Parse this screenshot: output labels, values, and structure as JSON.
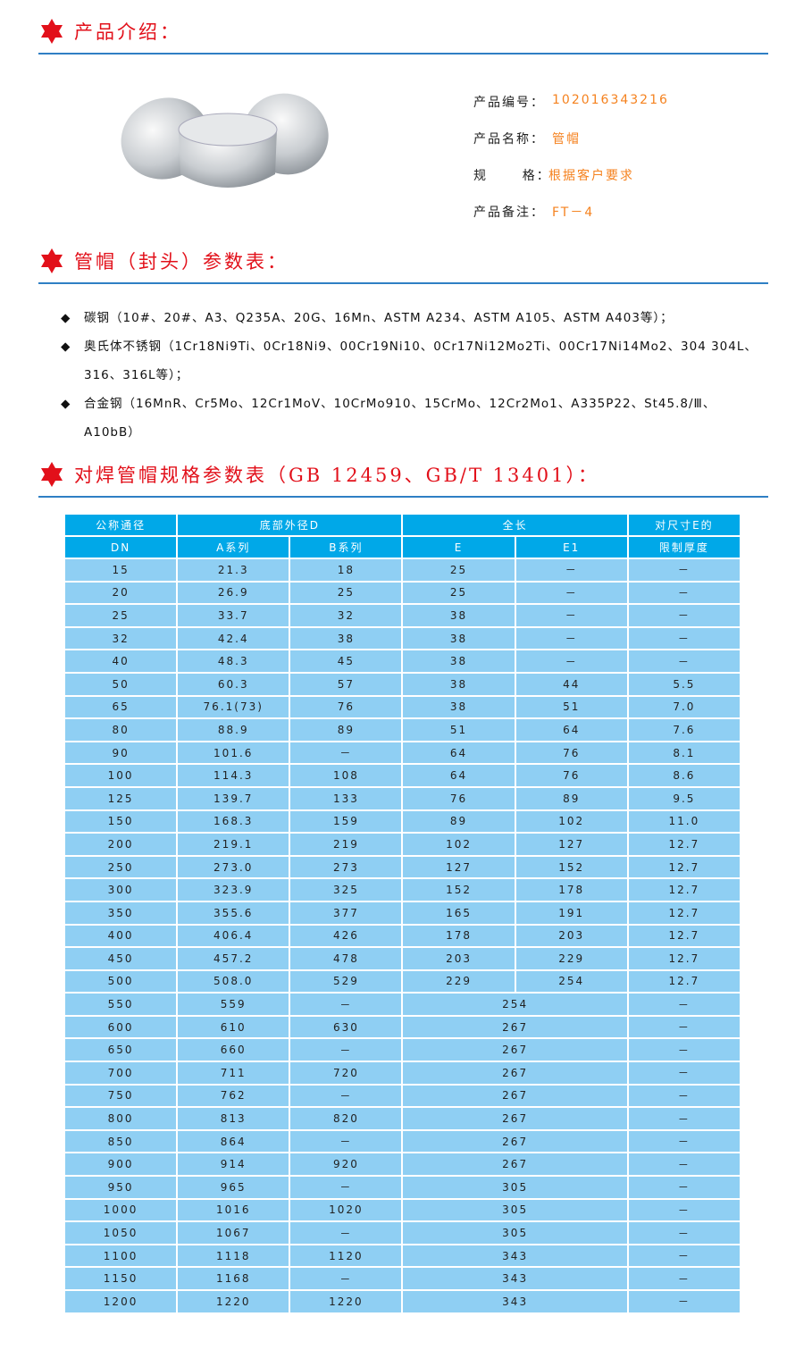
{
  "sections": {
    "intro": "产品介绍：",
    "params": "管帽（封头）参数表：",
    "spec": "对焊管帽规格参数表（GB 12459、GB/T 13401）："
  },
  "product": {
    "rows": [
      {
        "label": "产品编号：",
        "value": "102016343216"
      },
      {
        "label": "产品名称：",
        "value": "管帽"
      },
      {
        "label": "规      格：",
        "value": "根据客户要求"
      },
      {
        "label": "产品备注：",
        "value": "FT－4"
      }
    ],
    "image": "pipe-cap-photo"
  },
  "materials": [
    "碳钢（10#、20#、A3、Q235A、20G、16Mn、ASTM A234、ASTM A105、ASTM A403等）；",
    "奥氏体不锈钢（1Cr18Ni9Ti、0Cr18Ni9、00Cr19Ni10、0Cr17Ni12Mo2Ti、00Cr17Ni14Mo2、304 304L、316、316L等）；",
    "合金钢（16MnR、Cr5Mo、12Cr1MoV、10CrMo910、15CrMo、12Cr2Mo1、A335P22、St45.8/Ⅲ、A10bB）"
  ],
  "table": {
    "header1": [
      "公称通径",
      "底部外径D",
      "全长",
      "对尺寸E的"
    ],
    "header2": [
      "DN",
      "A系列",
      "B系列",
      "E",
      "E1",
      "限制厚度"
    ],
    "rows": [
      [
        "15",
        "21.3",
        "18",
        "25",
        "－",
        "－"
      ],
      [
        "20",
        "26.9",
        "25",
        "25",
        "－",
        "－"
      ],
      [
        "25",
        "33.7",
        "32",
        "38",
        "－",
        "－"
      ],
      [
        "32",
        "42.4",
        "38",
        "38",
        "－",
        "－"
      ],
      [
        "40",
        "48.3",
        "45",
        "38",
        "－",
        "－"
      ],
      [
        "50",
        "60.3",
        "57",
        "38",
        "44",
        "5.5"
      ],
      [
        "65",
        "76.1(73)",
        "76",
        "38",
        "51",
        "7.0"
      ],
      [
        "80",
        "88.9",
        "89",
        "51",
        "64",
        "7.6"
      ],
      [
        "90",
        "101.6",
        "－",
        "64",
        "76",
        "8.1"
      ],
      [
        "100",
        "114.3",
        "108",
        "64",
        "76",
        "8.6"
      ],
      [
        "125",
        "139.7",
        "133",
        "76",
        "89",
        "9.5"
      ],
      [
        "150",
        "168.3",
        "159",
        "89",
        "102",
        "11.0"
      ],
      [
        "200",
        "219.1",
        "219",
        "102",
        "127",
        "12.7"
      ],
      [
        "250",
        "273.0",
        "273",
        "127",
        "152",
        "12.7"
      ],
      [
        "300",
        "323.9",
        "325",
        "152",
        "178",
        "12.7"
      ],
      [
        "350",
        "355.6",
        "377",
        "165",
        "191",
        "12.7"
      ],
      [
        "400",
        "406.4",
        "426",
        "178",
        "203",
        "12.7"
      ],
      [
        "450",
        "457.2",
        "478",
        "203",
        "229",
        "12.7"
      ],
      [
        "500",
        "508.0",
        "529",
        "229",
        "254",
        "12.7"
      ],
      [
        "550",
        "559",
        "－",
        "254",
        "－"
      ],
      [
        "600",
        "610",
        "630",
        "267",
        "－"
      ],
      [
        "650",
        "660",
        "－",
        "267",
        "－"
      ],
      [
        "700",
        "711",
        "720",
        "267",
        "－"
      ],
      [
        "750",
        "762",
        "－",
        "267",
        "－"
      ],
      [
        "800",
        "813",
        "820",
        "267",
        "－"
      ],
      [
        "850",
        "864",
        "－",
        "267",
        "－"
      ],
      [
        "900",
        "914",
        "920",
        "267",
        "－"
      ],
      [
        "950",
        "965",
        "－",
        "305",
        "－"
      ],
      [
        "1000",
        "1016",
        "1020",
        "305",
        "－"
      ],
      [
        "1050",
        "1067",
        "－",
        "305",
        "－"
      ],
      [
        "1100",
        "1118",
        "1120",
        "343",
        "－"
      ],
      [
        "1150",
        "1168",
        "－",
        "343",
        "－"
      ],
      [
        "1200",
        "1220",
        "1220",
        "343",
        "－"
      ]
    ]
  },
  "colors": {
    "accent_red": "#e2101a",
    "rule_blue": "#2f7fc4",
    "value_orange": "#f5821f",
    "header_blue": "#00a8e8",
    "row_blue": "#8fcff3"
  }
}
